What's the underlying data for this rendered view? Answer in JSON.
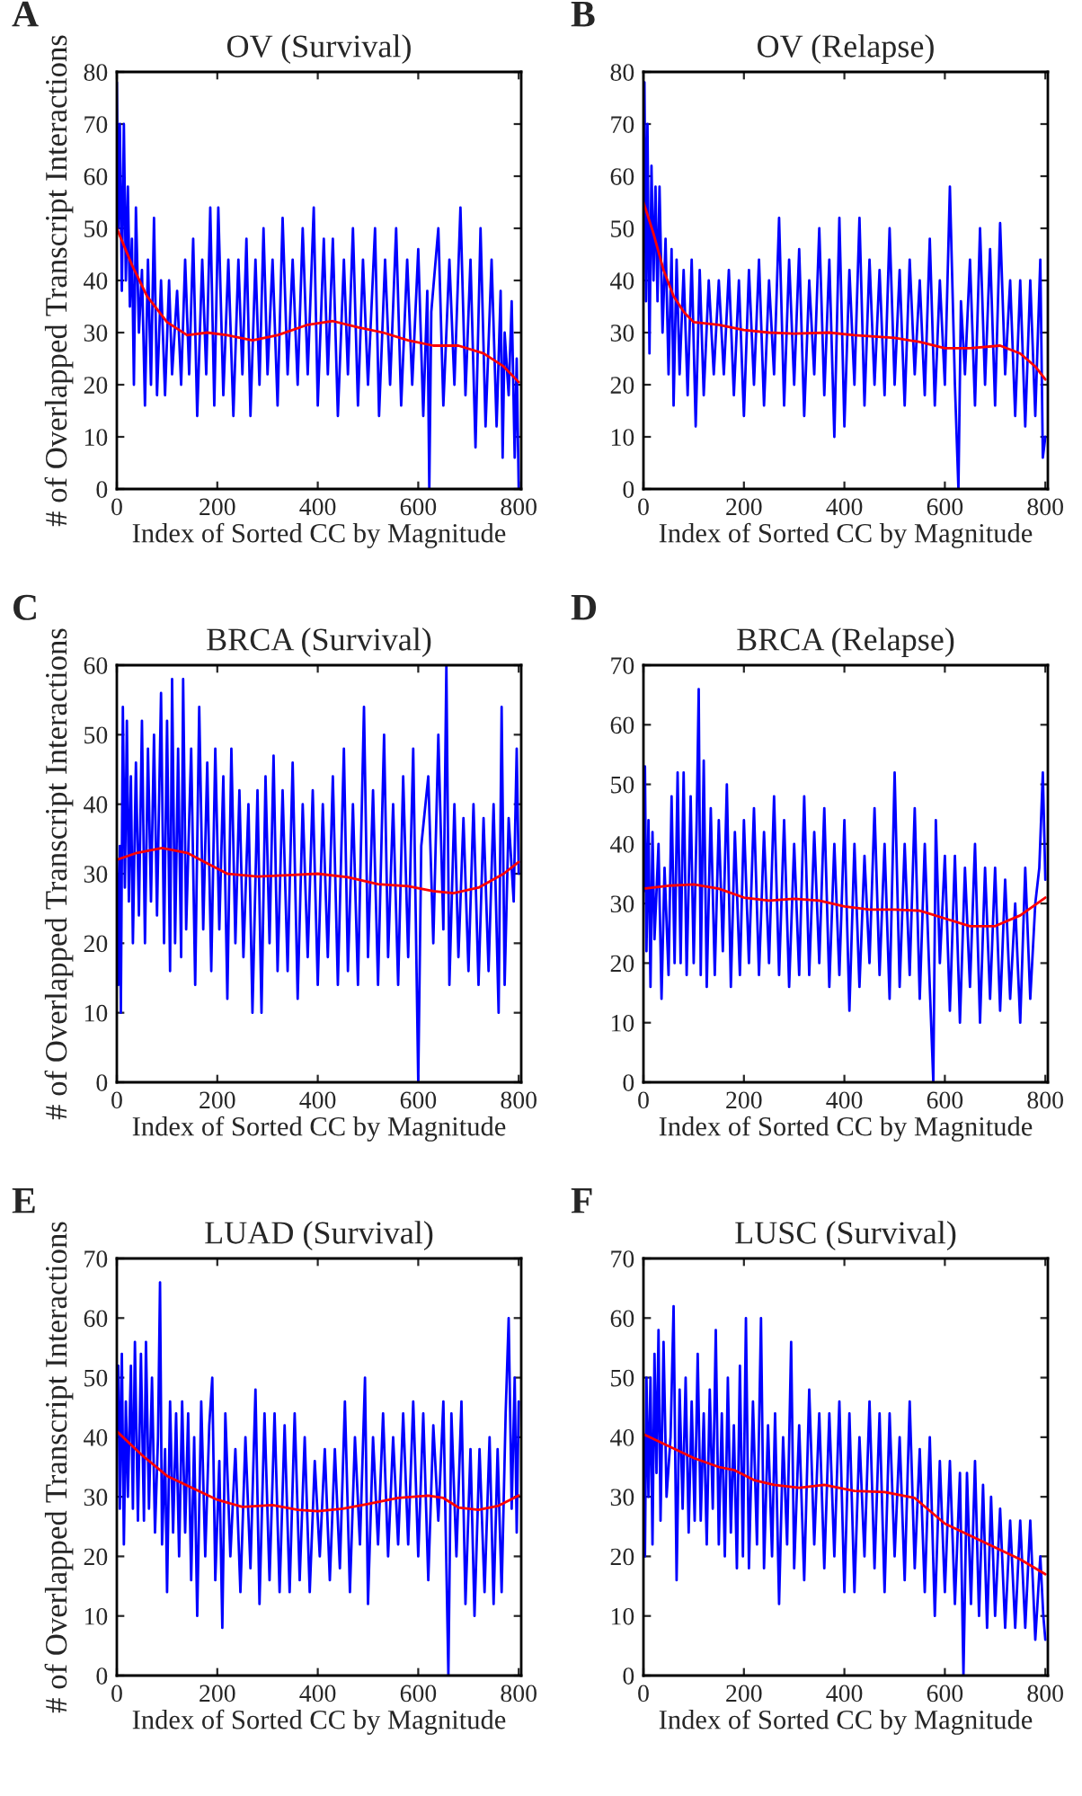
{
  "chart_data": [
    {
      "type": "line",
      "title": "OV (Survival)",
      "xlabel": "Index of Sorted CC by Magnitude",
      "ylabel": "# of Overlapped Transcript Interactions",
      "annotations": [
        "A"
      ],
      "xlim": [
        0,
        805
      ],
      "xticks": [
        0,
        200,
        400,
        600,
        800
      ],
      "ylim": [
        0,
        80
      ],
      "yticks": [
        0,
        10,
        20,
        30,
        40,
        50,
        60,
        70,
        80
      ],
      "series": [
        {
          "color": "#0000ff",
          "x": [
            0,
            3,
            6,
            10,
            14,
            18,
            22,
            26,
            30,
            34,
            38,
            44,
            50,
            56,
            62,
            68,
            74,
            80,
            88,
            96,
            104,
            110,
            120,
            128,
            136,
            144,
            152,
            160,
            170,
            178,
            186,
            194,
            202,
            212,
            222,
            232,
            242,
            250,
            258,
            266,
            276,
            284,
            292,
            300,
            310,
            320,
            330,
            340,
            350,
            360,
            370,
            380,
            392,
            400,
            412,
            420,
            430,
            440,
            452,
            460,
            470,
            480,
            490,
            500,
            514,
            522,
            534,
            544,
            556,
            566,
            578,
            588,
            600,
            610,
            618,
            622,
            626,
            640,
            650,
            662,
            672,
            684,
            694,
            704,
            714,
            724,
            734,
            746,
            756,
            764,
            768,
            772,
            780,
            786,
            792,
            796,
            800
          ],
          "values": [
            78,
            50,
            70,
            38,
            70,
            40,
            58,
            35,
            48,
            20,
            54,
            30,
            42,
            16,
            44,
            20,
            52,
            18,
            40,
            18,
            40,
            22,
            38,
            20,
            44,
            22,
            48,
            14,
            44,
            22,
            54,
            16,
            54,
            18,
            44,
            14,
            44,
            22,
            48,
            14,
            44,
            20,
            50,
            22,
            44,
            16,
            52,
            22,
            44,
            20,
            50,
            22,
            54,
            16,
            48,
            22,
            48,
            14,
            44,
            22,
            50,
            16,
            44,
            20,
            50,
            14,
            44,
            20,
            50,
            16,
            44,
            20,
            46,
            14,
            38,
            0,
            34,
            50,
            16,
            44,
            20,
            54,
            18,
            44,
            8,
            50,
            12,
            44,
            12,
            38,
            6,
            30,
            18,
            36,
            6,
            25,
            0
          ]
        },
        {
          "color": "#ff0000",
          "x": [
            0,
            30,
            60,
            100,
            140,
            180,
            220,
            270,
            320,
            380,
            430,
            480,
            530,
            580,
            630,
            680,
            730,
            770,
            800
          ],
          "values": [
            50,
            43,
            37,
            32,
            29.5,
            30,
            29.5,
            28.5,
            29.5,
            31.5,
            32.2,
            31,
            30,
            28.5,
            27.5,
            27.5,
            26,
            23.5,
            20.5
          ]
        }
      ]
    },
    {
      "type": "line",
      "title": "OV (Relapse)",
      "xlabel": "Index of Sorted CC by Magnitude",
      "annotations": [
        "B"
      ],
      "xlim": [
        0,
        805
      ],
      "xticks": [
        0,
        200,
        400,
        600,
        800
      ],
      "ylim": [
        0,
        80
      ],
      "yticks": [
        0,
        10,
        20,
        30,
        40,
        50,
        60,
        70,
        80
      ],
      "series": [
        {
          "color": "#0000ff",
          "x": [
            0,
            2,
            5,
            8,
            12,
            16,
            20,
            24,
            28,
            32,
            38,
            44,
            50,
            56,
            60,
            66,
            72,
            80,
            88,
            96,
            104,
            112,
            120,
            130,
            140,
            150,
            160,
            170,
            180,
            190,
            200,
            210,
            220,
            230,
            240,
            250,
            260,
            270,
            280,
            290,
            300,
            310,
            320,
            330,
            340,
            350,
            360,
            370,
            380,
            390,
            400,
            410,
            420,
            430,
            440,
            450,
            460,
            470,
            480,
            490,
            500,
            510,
            520,
            530,
            540,
            550,
            560,
            570,
            580,
            590,
            600,
            610,
            620,
            627,
            632,
            640,
            650,
            660,
            670,
            680,
            690,
            700,
            710,
            720,
            730,
            740,
            750,
            760,
            770,
            780,
            790,
            795,
            800
          ],
          "values": [
            55,
            78,
            36,
            70,
            26,
            62,
            40,
            58,
            36,
            58,
            30,
            48,
            22,
            46,
            16,
            44,
            22,
            42,
            18,
            44,
            12,
            42,
            18,
            40,
            22,
            40,
            22,
            42,
            18,
            40,
            14,
            42,
            20,
            44,
            16,
            40,
            22,
            52,
            16,
            44,
            20,
            46,
            14,
            40,
            22,
            50,
            18,
            44,
            10,
            52,
            12,
            42,
            20,
            52,
            16,
            44,
            20,
            42,
            18,
            50,
            20,
            42,
            16,
            44,
            22,
            40,
            18,
            48,
            16,
            40,
            20,
            58,
            20,
            0,
            36,
            22,
            44,
            16,
            50,
            20,
            46,
            16,
            51,
            22,
            40,
            14,
            40,
            12,
            40,
            14,
            44,
            6,
            10
          ]
        },
        {
          "color": "#ff0000",
          "x": [
            0,
            20,
            40,
            60,
            80,
            100,
            150,
            200,
            250,
            300,
            370,
            420,
            500,
            550,
            600,
            650,
            710,
            750,
            780,
            800
          ],
          "values": [
            55,
            49,
            42,
            37,
            34,
            32,
            31.5,
            30.5,
            30,
            29.8,
            30,
            29.5,
            29,
            28.2,
            27,
            27,
            27.5,
            26,
            23.5,
            21
          ]
        }
      ]
    },
    {
      "type": "line",
      "title": "BRCA (Survival)",
      "xlabel": "Index of Sorted CC by Magnitude",
      "ylabel": "# of Overlapped Transcript Interactions",
      "annotations": [
        "C"
      ],
      "xlim": [
        0,
        805
      ],
      "xticks": [
        0,
        200,
        400,
        600,
        800
      ],
      "ylim": [
        0,
        60
      ],
      "yticks": [
        0,
        10,
        20,
        30,
        40,
        50,
        60
      ],
      "series": [
        {
          "color": "#0000ff",
          "x": [
            0,
            3,
            6,
            8,
            12,
            16,
            20,
            24,
            28,
            32,
            38,
            44,
            50,
            56,
            62,
            68,
            74,
            80,
            88,
            94,
            100,
            106,
            110,
            116,
            122,
            128,
            132,
            138,
            148,
            156,
            164,
            172,
            180,
            188,
            196,
            204,
            212,
            220,
            228,
            236,
            244,
            252,
            262,
            270,
            280,
            288,
            296,
            304,
            312,
            320,
            330,
            340,
            350,
            360,
            370,
            380,
            390,
            400,
            410,
            420,
            430,
            440,
            452,
            460,
            470,
            480,
            492,
            500,
            510,
            520,
            532,
            540,
            550,
            560,
            570,
            580,
            590,
            600,
            606,
            620,
            630,
            640,
            650,
            656,
            662,
            672,
            680,
            690,
            700,
            710,
            720,
            730,
            740,
            750,
            760,
            766,
            772,
            780,
            790,
            796,
            800
          ],
          "values": [
            32,
            14,
            34,
            10,
            54,
            28,
            52,
            26,
            44,
            20,
            46,
            24,
            52,
            20,
            48,
            26,
            50,
            24,
            56,
            20,
            52,
            16,
            58,
            20,
            48,
            18,
            58,
            22,
            48,
            14,
            54,
            22,
            46,
            16,
            48,
            22,
            44,
            12,
            48,
            20,
            42,
            18,
            40,
            10,
            42,
            10,
            44,
            20,
            47,
            16,
            42,
            16,
            46,
            12,
            40,
            18,
            42,
            14,
            40,
            18,
            44,
            14,
            48,
            16,
            40,
            14,
            54,
            18,
            42,
            14,
            50,
            18,
            40,
            14,
            44,
            18,
            48,
            0,
            34,
            44,
            20,
            50,
            22,
            60,
            14,
            40,
            18,
            38,
            16,
            40,
            14,
            38,
            16,
            40,
            10,
            54,
            14,
            38,
            26,
            48,
            30
          ]
        },
        {
          "color": "#ff0000",
          "x": [
            0,
            40,
            90,
            140,
            180,
            220,
            280,
            340,
            400,
            460,
            520,
            580,
            630,
            670,
            720,
            770,
            800
          ],
          "values": [
            32,
            33,
            33.7,
            33,
            31.5,
            30,
            29.6,
            29.8,
            30,
            29.5,
            28.5,
            28.2,
            27.5,
            27.2,
            28,
            30,
            31.7
          ]
        }
      ]
    },
    {
      "type": "line",
      "title": "BRCA (Relapse)",
      "xlabel": "Index of Sorted CC by Magnitude",
      "annotations": [
        "D"
      ],
      "xlim": [
        0,
        805
      ],
      "xticks": [
        0,
        200,
        400,
        600,
        800
      ],
      "ylim": [
        0,
        70
      ],
      "yticks": [
        0,
        10,
        20,
        30,
        40,
        50,
        60,
        70
      ],
      "series": [
        {
          "color": "#0000ff",
          "x": [
            0,
            3,
            6,
            10,
            14,
            18,
            22,
            30,
            36,
            42,
            50,
            56,
            62,
            68,
            74,
            80,
            86,
            94,
            100,
            106,
            110,
            114,
            120,
            126,
            134,
            142,
            150,
            158,
            166,
            174,
            182,
            192,
            200,
            210,
            220,
            230,
            240,
            250,
            260,
            270,
            280,
            290,
            300,
            310,
            320,
            330,
            340,
            350,
            360,
            370,
            380,
            390,
            400,
            410,
            420,
            430,
            440,
            450,
            460,
            470,
            480,
            490,
            500,
            510,
            520,
            530,
            540,
            550,
            560,
            570,
            577,
            582,
            590,
            600,
            610,
            620,
            630,
            640,
            650,
            660,
            670,
            680,
            690,
            700,
            710,
            720,
            730,
            740,
            750,
            760,
            770,
            780,
            788,
            795,
            800
          ],
          "values": [
            32,
            53,
            22,
            44,
            16,
            42,
            24,
            40,
            14,
            36,
            18,
            48,
            20,
            52,
            20,
            52,
            18,
            48,
            20,
            44,
            66,
            18,
            54,
            16,
            46,
            18,
            44,
            22,
            50,
            16,
            42,
            18,
            44,
            20,
            46,
            18,
            42,
            20,
            48,
            18,
            44,
            16,
            40,
            18,
            48,
            18,
            42,
            20,
            46,
            16,
            40,
            18,
            44,
            12,
            40,
            16,
            38,
            20,
            46,
            18,
            40,
            14,
            52,
            16,
            40,
            18,
            46,
            14,
            40,
            16,
            0,
            44,
            20,
            38,
            12,
            38,
            10,
            36,
            16,
            40,
            10,
            36,
            14,
            36,
            12,
            34,
            14,
            30,
            10,
            36,
            14,
            30,
            36,
            52,
            34
          ]
        },
        {
          "color": "#ff0000",
          "x": [
            0,
            50,
            100,
            150,
            200,
            250,
            300,
            350,
            400,
            450,
            500,
            550,
            600,
            650,
            700,
            750,
            800
          ],
          "values": [
            32.5,
            33,
            33.2,
            32.5,
            31,
            30.5,
            30.8,
            30.5,
            29.5,
            29,
            29,
            28.8,
            27.5,
            26.2,
            26.2,
            28,
            31
          ]
        }
      ]
    },
    {
      "type": "line",
      "title": "LUAD (Survival)",
      "xlabel": "Index of Sorted CC by Magnitude",
      "ylabel": "# of Overlapped Transcript Interactions",
      "annotations": [
        "E"
      ],
      "xlim": [
        0,
        805
      ],
      "xticks": [
        0,
        200,
        400,
        600,
        800
      ],
      "ylim": [
        0,
        70
      ],
      "yticks": [
        0,
        10,
        20,
        30,
        40,
        50,
        60,
        70
      ],
      "series": [
        {
          "color": "#0000ff",
          "x": [
            0,
            3,
            6,
            10,
            14,
            18,
            22,
            28,
            32,
            36,
            42,
            48,
            54,
            58,
            64,
            70,
            76,
            82,
            86,
            90,
            96,
            100,
            106,
            112,
            118,
            124,
            130,
            136,
            142,
            148,
            154,
            160,
            168,
            176,
            184,
            190,
            196,
            204,
            210,
            216,
            226,
            236,
            246,
            256,
            266,
            276,
            284,
            294,
            304,
            314,
            324,
            334,
            344,
            354,
            364,
            374,
            384,
            394,
            404,
            414,
            424,
            434,
            444,
            454,
            464,
            474,
            484,
            494,
            500,
            510,
            520,
            530,
            540,
            550,
            560,
            570,
            580,
            590,
            600,
            610,
            620,
            630,
            640,
            650,
            660,
            666,
            676,
            686,
            694,
            704,
            712,
            722,
            732,
            742,
            750,
            758,
            766,
            774,
            780,
            786,
            792,
            796,
            800
          ],
          "values": [
            41,
            52,
            28,
            54,
            22,
            46,
            30,
            52,
            28,
            56,
            26,
            54,
            26,
            56,
            28,
            50,
            24,
            40,
            66,
            22,
            38,
            14,
            46,
            24,
            44,
            20,
            46,
            24,
            44,
            16,
            40,
            10,
            46,
            20,
            42,
            50,
            16,
            36,
            8,
            44,
            20,
            38,
            14,
            40,
            18,
            48,
            12,
            44,
            16,
            44,
            14,
            42,
            14,
            44,
            16,
            40,
            14,
            36,
            20,
            38,
            16,
            38,
            18,
            46,
            14,
            40,
            22,
            50,
            12,
            40,
            22,
            44,
            20,
            40,
            22,
            44,
            22,
            46,
            20,
            44,
            16,
            42,
            26,
            46,
            0,
            44,
            20,
            46,
            12,
            38,
            10,
            38,
            14,
            40,
            12,
            38,
            14,
            44,
            60,
            28,
            50,
            24,
            46
          ]
        },
        {
          "color": "#ff0000",
          "x": [
            0,
            50,
            100,
            150,
            200,
            250,
            310,
            360,
            400,
            450,
            500,
            560,
            620,
            650,
            680,
            720,
            760,
            800
          ],
          "values": [
            41,
            37,
            33.5,
            31.5,
            29.5,
            28.3,
            28.6,
            27.8,
            27.6,
            28,
            28.8,
            29.8,
            30.2,
            29.8,
            28.2,
            27.8,
            28.5,
            30.2
          ]
        }
      ]
    },
    {
      "type": "line",
      "title": "LUSC (Survival)",
      "xlabel": "Index of Sorted CC by Magnitude",
      "annotations": [
        "F"
      ],
      "xlim": [
        0,
        805
      ],
      "xticks": [
        0,
        200,
        400,
        600,
        800
      ],
      "ylim": [
        0,
        70
      ],
      "yticks": [
        0,
        10,
        20,
        30,
        40,
        50,
        60,
        70
      ],
      "series": [
        {
          "color": "#0000ff",
          "x": [
            0,
            3,
            6,
            10,
            14,
            18,
            22,
            26,
            30,
            34,
            40,
            46,
            54,
            60,
            66,
            72,
            78,
            84,
            90,
            96,
            102,
            108,
            114,
            120,
            126,
            132,
            138,
            144,
            150,
            156,
            162,
            168,
            174,
            180,
            186,
            192,
            198,
            204,
            210,
            218,
            226,
            234,
            240,
            248,
            256,
            262,
            270,
            278,
            286,
            294,
            300,
            310,
            320,
            330,
            340,
            350,
            360,
            370,
            380,
            390,
            400,
            410,
            420,
            430,
            440,
            450,
            460,
            470,
            480,
            490,
            500,
            510,
            520,
            530,
            540,
            550,
            560,
            570,
            580,
            590,
            600,
            610,
            620,
            630,
            637,
            644,
            652,
            660,
            668,
            676,
            684,
            692,
            700,
            710,
            720,
            730,
            740,
            750,
            760,
            770,
            780,
            790,
            796,
            800
          ],
          "values": [
            40,
            20,
            50,
            30,
            50,
            22,
            54,
            34,
            58,
            26,
            56,
            30,
            40,
            62,
            16,
            48,
            28,
            50,
            24,
            46,
            26,
            54,
            26,
            44,
            22,
            48,
            28,
            58,
            22,
            44,
            20,
            50,
            24,
            42,
            18,
            52,
            20,
            60,
            18,
            46,
            22,
            60,
            18,
            42,
            20,
            44,
            12,
            40,
            22,
            56,
            18,
            42,
            16,
            48,
            22,
            44,
            18,
            44,
            20,
            46,
            14,
            44,
            14,
            40,
            20,
            46,
            18,
            44,
            14,
            44,
            20,
            40,
            16,
            46,
            18,
            38,
            14,
            40,
            10,
            36,
            14,
            36,
            12,
            34,
            0,
            34,
            12,
            36,
            10,
            32,
            8,
            30,
            10,
            28,
            8,
            26,
            8,
            26,
            8,
            26,
            6,
            20,
            10,
            6
          ]
        },
        {
          "color": "#ff0000",
          "x": [
            0,
            50,
            100,
            150,
            180,
            220,
            260,
            310,
            360,
            420,
            480,
            540,
            600,
            650,
            700,
            750,
            800
          ],
          "values": [
            40.5,
            38.5,
            36.5,
            35,
            34.5,
            32.8,
            32,
            31.5,
            32,
            31,
            30.8,
            29.8,
            25.5,
            23.5,
            21.5,
            19.5,
            17
          ]
        }
      ]
    }
  ]
}
